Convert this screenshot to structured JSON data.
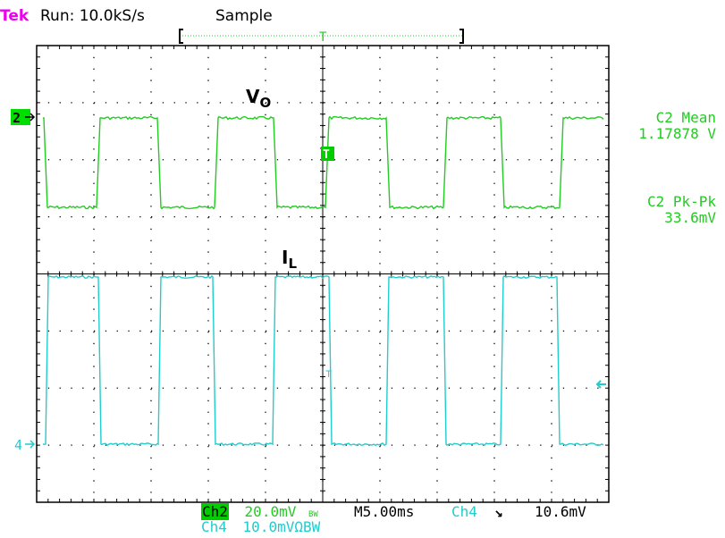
{
  "header": {
    "brand": "Tek",
    "run_status": "Run: 10.0kS/s",
    "acq_mode": "Sample"
  },
  "waveform_labels": {
    "vo": "V",
    "vo_sub": "O",
    "il": "I",
    "il_sub": "L"
  },
  "markers": {
    "ch2_ground": "2",
    "ch4_ground": "4",
    "trigger": "T"
  },
  "measurements": [
    {
      "label": "C2 Mean",
      "value": "1.17878 V"
    },
    {
      "label": "C2 Pk-Pk",
      "value": "33.6mV"
    }
  ],
  "bottom": {
    "ch2_label": "Ch2",
    "ch2_scale": "20.0mV",
    "bw_symbol": "BW",
    "timebase": "M5.00ms",
    "trig_source": "Ch4",
    "trig_slope": "↘",
    "trig_level": "10.6mV",
    "ch4_label": "Ch4",
    "ch4_scale": "10.0mVΩBW"
  },
  "colors": {
    "ch2": "#22cc22",
    "ch4": "#22cccc",
    "brand": "#ee00ee"
  }
}
